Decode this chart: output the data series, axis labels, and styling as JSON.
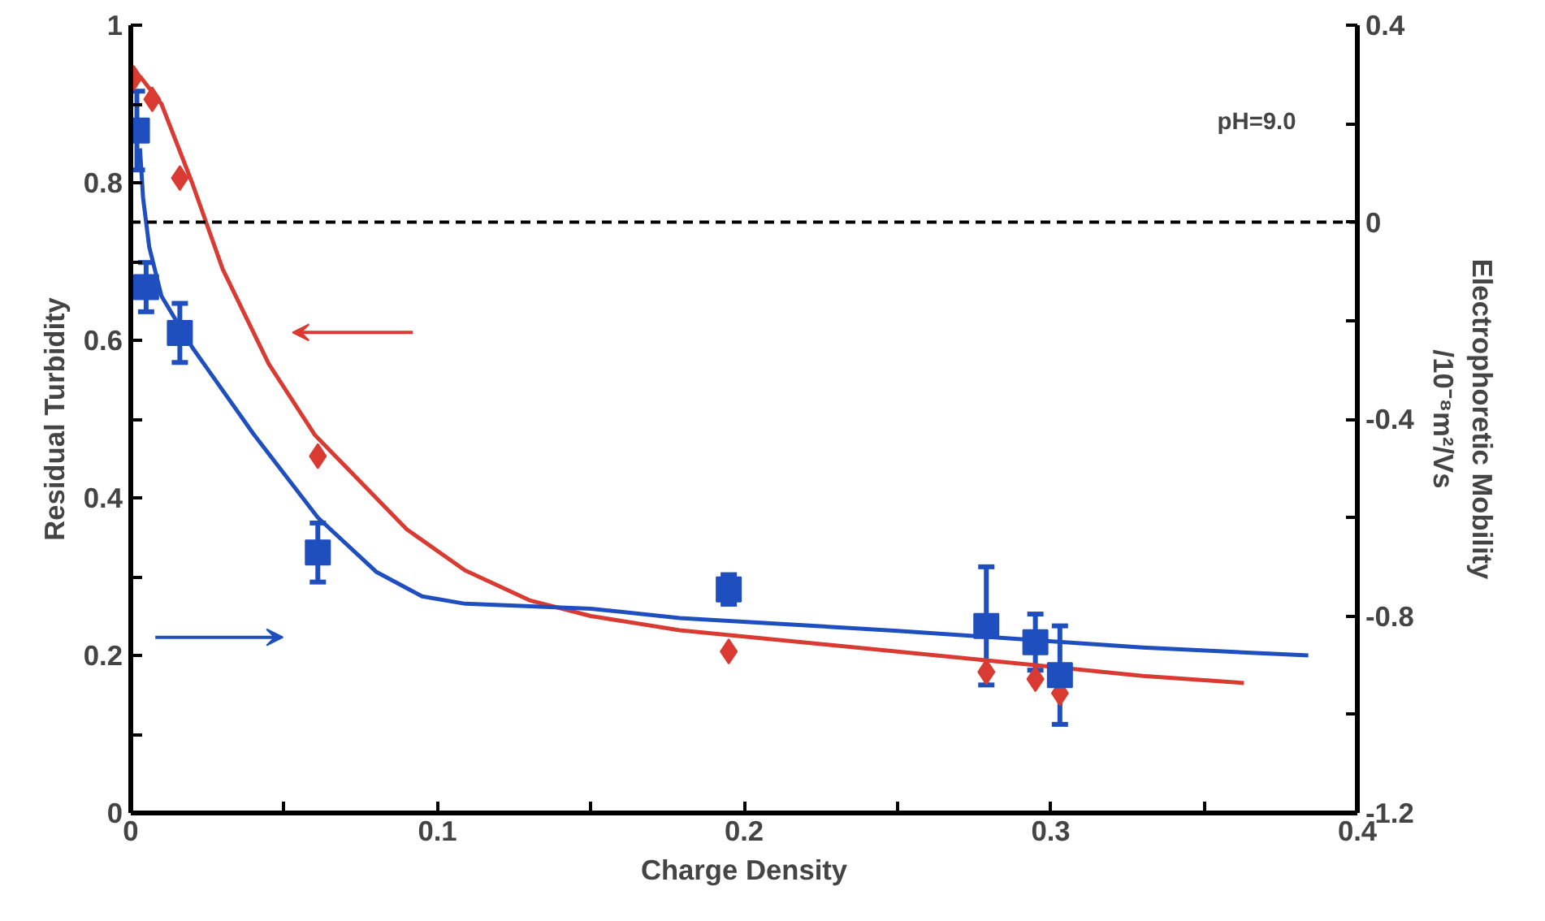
{
  "chart_data": {
    "type": "scatter",
    "xlabel": "Charge Density",
    "ylabel": "Residual Turbidity",
    "y2label": "Electrophoretic Mobility\n/10⁻⁸m²/Vs",
    "annotations": [
      "pH=9.0"
    ],
    "xlim": [
      0,
      0.4
    ],
    "ylim": [
      0,
      1
    ],
    "y2lim": [
      -1.2,
      0.4
    ],
    "xticks": [
      0,
      {
        "value": 0.05,
        "label": null
      },
      0.1,
      {
        "value": 0.15,
        "label": null
      },
      0.2,
      {
        "value": 0.25,
        "label": null
      },
      0.3,
      {
        "value": 0.35,
        "label": null
      },
      0.4
    ],
    "yticks": [
      0,
      {
        "value": 0.1,
        "label": null
      },
      0.2,
      {
        "value": 0.3,
        "label": null
      },
      0.4,
      {
        "value": 0.5,
        "label": null
      },
      0.6,
      {
        "value": 0.7,
        "label": null
      },
      0.8,
      {
        "value": 0.9,
        "label": null
      },
      1
    ],
    "y2ticks": [
      -1.2,
      {
        "value": -1.0,
        "label": null
      },
      -0.8,
      {
        "value": -0.6,
        "label": null
      },
      -0.4,
      {
        "value": -0.2,
        "label": null
      },
      0,
      {
        "value": 0.2,
        "label": null
      },
      0.4
    ],
    "grid": false,
    "ref_lines": [
      {
        "axis": "y2",
        "value": 0,
        "color": "#000000",
        "line_style": "dashed"
      }
    ],
    "series": [
      {
        "type": "line",
        "color": "#d93a32",
        "marker": "none",
        "x": [
          0.003,
          0.01,
          0.02,
          0.03,
          0.045,
          0.06,
          0.07,
          0.09,
          0.109,
          0.13,
          0.15,
          0.179,
          0.25,
          0.33,
          0.363
        ],
        "values": [
          0.935,
          0.9,
          0.8,
          0.69,
          0.57,
          0.48,
          0.44,
          0.36,
          0.308,
          0.27,
          0.25,
          0.232,
          0.205,
          0.174,
          0.165
        ]
      },
      {
        "type": "line",
        "color": "#1f4fbf",
        "marker": "none",
        "axis": "y2",
        "x": [
          0.003,
          0.004,
          0.006,
          0.01,
          0.02,
          0.04,
          0.061,
          0.08,
          0.095,
          0.109,
          0.15,
          0.179,
          0.25,
          0.33,
          0.384
        ],
        "values": [
          0.15,
          0.05,
          -0.05,
          -0.15,
          -0.254,
          -0.43,
          -0.6,
          -0.71,
          -0.76,
          -0.775,
          -0.785,
          -0.804,
          -0.83,
          -0.864,
          -0.88
        ]
      },
      {
        "type": "scatter",
        "color": "#d93a32",
        "marker": "diamond",
        "x": [
          0.001,
          0.007,
          0.016,
          0.061,
          0.195,
          0.279,
          0.295,
          0.303
        ],
        "values": [
          0.933,
          0.906,
          0.806,
          0.453,
          0.205,
          0.179,
          0.17,
          0.152
        ]
      },
      {
        "type": "scatter",
        "color": "#1f4fbf",
        "marker": "square",
        "axis": "y2",
        "x": [
          0.002,
          0.005,
          0.016,
          0.061,
          0.195,
          0.279,
          0.295,
          0.303
        ],
        "values": [
          0.186,
          -0.132,
          -0.225,
          -0.671,
          -0.746,
          -0.82,
          -0.853,
          -0.92
        ],
        "errors": [
          0.08,
          0.05,
          0.06,
          0.06,
          0.03,
          0.12,
          0.057,
          0.1
        ]
      }
    ]
  }
}
